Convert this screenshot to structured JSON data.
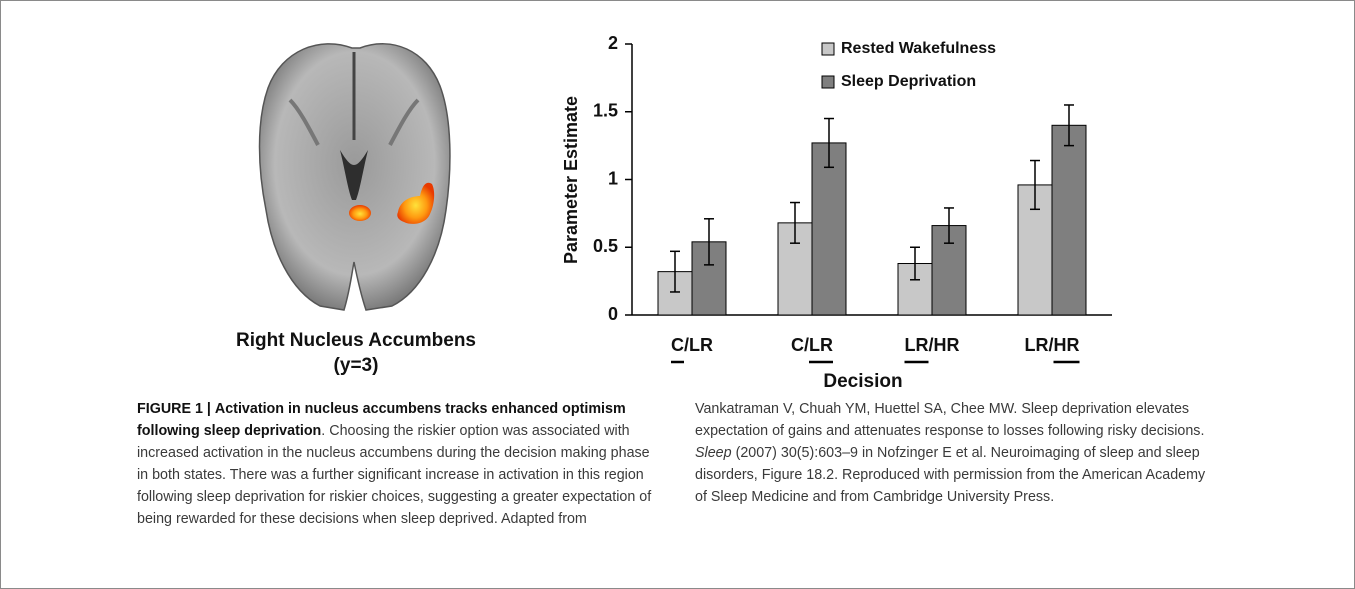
{
  "brain_panel": {
    "label": "Right Nucleus Accumbens",
    "sublabel": "(y=3)"
  },
  "chart_data": {
    "type": "bar",
    "categories": [
      "C/LR",
      "C/LR",
      "LR/HR",
      "LR/HR"
    ],
    "category_underline": [
      0,
      1,
      0,
      1
    ],
    "series": [
      {
        "name": "Rested Wakefulness",
        "color": "#c8c8c8",
        "values": [
          0.32,
          0.68,
          0.38,
          0.96
        ],
        "errors": [
          0.15,
          0.15,
          0.12,
          0.18
        ]
      },
      {
        "name": "Sleep Deprivation",
        "color": "#7f7f7f",
        "values": [
          0.54,
          1.27,
          0.66,
          1.4
        ],
        "errors": [
          0.17,
          0.18,
          0.13,
          0.15
        ]
      }
    ],
    "ylabel": "Parameter Estimate",
    "xlabel": "Decision",
    "ylim": [
      0,
      2
    ],
    "yticks": [
      0,
      0.5,
      1,
      1.5,
      2
    ],
    "grid": false,
    "legend": "top"
  },
  "caption": {
    "label": "FIGURE 1 |",
    "title": "Activation in nucleus accumbens tracks enhanced optimism following sleep deprivation",
    "body_1": ". Choosing the riskier option was associated with increased activation in the nucleus accumbens during the decision making phase in both states. There was a further significant increase in activation in this region following sleep deprivation for riskier choices, suggesting a greater expectation of being rewarded for these decisions when sleep deprived. Adapted from Vankatraman V, Chuah YM, Huettel SA, Chee MW. Sleep deprivation elevates expectation of gains and attenuates response to losses following risky decisions.",
    "journal": "Sleep",
    "body_2": "(2007) 30(5):603–9 in Nofzinger E et al. Neuroimaging of sleep and sleep disorders, Figure 18.2. Reproduced with permission from the American Academy of Sleep Medicine and from Cambridge University Press."
  }
}
